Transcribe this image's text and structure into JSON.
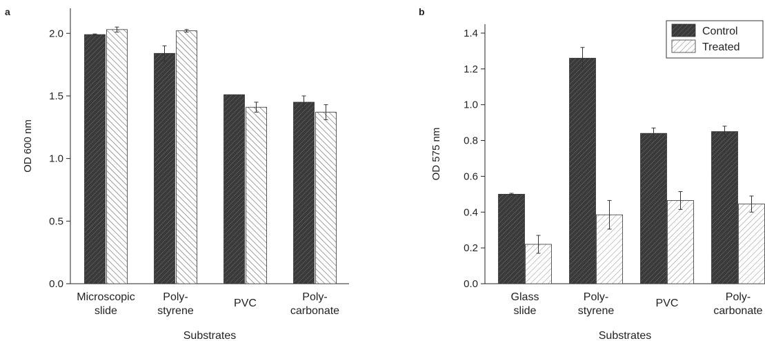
{
  "chart_data": [
    {
      "panel_label": "a",
      "type": "bar",
      "xlabel": "Substrates",
      "ylabel": "OD 600 nm",
      "ylim": [
        0,
        2.2
      ],
      "yticks": [
        "0.0",
        "0.5",
        "1.0",
        "1.5",
        "2.0"
      ],
      "categories": [
        [
          "Microscopic",
          "slide"
        ],
        [
          "Poly-",
          "styrene"
        ],
        [
          "PVC"
        ],
        [
          "Poly-",
          "carbonate"
        ]
      ],
      "series": [
        {
          "values": [
            1.99,
            1.84,
            1.51,
            1.45
          ],
          "errors": [
            0.005,
            0.06,
            0.0,
            0.05
          ],
          "fill": "#3a3a3a"
        },
        {
          "values": [
            2.03,
            2.02,
            1.41,
            1.37
          ],
          "errors": [
            0.02,
            0.01,
            0.04,
            0.06
          ],
          "fill": "#ffffff"
        }
      ]
    },
    {
      "panel_label": "b",
      "type": "bar",
      "xlabel": "Substrates",
      "ylabel": "OD 575 nm",
      "ylim": [
        0,
        1.45
      ],
      "yticks": [
        "0.0",
        "0.2",
        "0.4",
        "0.6",
        "0.8",
        "1.0",
        "1.2",
        "1.4"
      ],
      "categories": [
        [
          "Glass",
          "slide"
        ],
        [
          "Poly-",
          "styrene"
        ],
        [
          "PVC"
        ],
        [
          "Poly-",
          "carbonate"
        ]
      ],
      "series": [
        {
          "name": "Control",
          "values": [
            0.5,
            1.26,
            0.84,
            0.85
          ],
          "errors": [
            0.005,
            0.06,
            0.03,
            0.03
          ],
          "fill": "#3a3a3a"
        },
        {
          "name": "Treated",
          "values": [
            0.22,
            0.385,
            0.465,
            0.445
          ],
          "errors": [
            0.05,
            0.08,
            0.05,
            0.045
          ],
          "fill": "#ffffff"
        }
      ],
      "legend": {
        "position": "top-right"
      }
    }
  ]
}
